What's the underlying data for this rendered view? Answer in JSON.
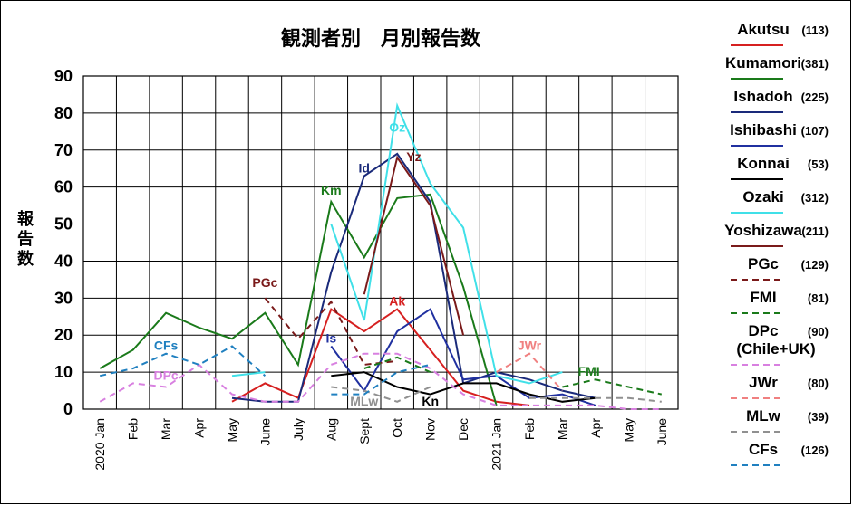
{
  "chart_data": {
    "type": "line",
    "title": "観測者別　月別報告数",
    "ylabel": "報告数",
    "xlabel": "",
    "ylim": [
      0,
      90
    ],
    "yticks": [
      0,
      10,
      20,
      30,
      40,
      50,
      60,
      70,
      80,
      90
    ],
    "grid": true,
    "legend_position": "right",
    "categories": [
      "2020 Jan",
      "Feb",
      "Mar",
      "Apr",
      "May",
      "June",
      "July",
      "Aug",
      "Sept",
      "Oct",
      "Nov",
      "Dec",
      "2021 Jan",
      "Feb",
      "Mar",
      "Apr",
      "May",
      "June"
    ],
    "series": [
      {
        "name": "Akutsu",
        "count": "(113)",
        "color": "#d62020",
        "dash": "solid",
        "values": [
          null,
          null,
          null,
          null,
          2,
          7,
          3,
          27,
          21,
          27,
          16,
          5,
          2,
          1,
          null,
          null,
          null,
          null
        ]
      },
      {
        "name": "Kumamori",
        "count": "(381)",
        "color": "#1a7a1a",
        "dash": "solid",
        "values": [
          11,
          16,
          26,
          22,
          19,
          26,
          12,
          56,
          41,
          57,
          58,
          33,
          1,
          null,
          null,
          null,
          null,
          null
        ]
      },
      {
        "name": "Ishadoh",
        "count": "(225)",
        "color": "#1a2a7a",
        "dash": "solid",
        "values": [
          null,
          null,
          null,
          null,
          3,
          2,
          2,
          37,
          63,
          69,
          56,
          7,
          10,
          8,
          5,
          3,
          null,
          null
        ]
      },
      {
        "name": "Ishibashi",
        "count": "(107)",
        "color": "#2030a0",
        "dash": "solid",
        "values": [
          null,
          null,
          null,
          null,
          null,
          null,
          null,
          17,
          5,
          21,
          27,
          8,
          9,
          3,
          4,
          1,
          null,
          null
        ]
      },
      {
        "name": "Konnai",
        "count": "(53)",
        "color": "#000000",
        "dash": "solid",
        "values": [
          null,
          null,
          null,
          null,
          null,
          null,
          null,
          9,
          10,
          6,
          4,
          7,
          7,
          4,
          2,
          3,
          null,
          null
        ]
      },
      {
        "name": "Ozaki",
        "count": "(312)",
        "color": "#40e0e8",
        "dash": "solid",
        "values": [
          null,
          null,
          null,
          null,
          9,
          10,
          null,
          50,
          24,
          82,
          61,
          49,
          9,
          7,
          10,
          null,
          null,
          null
        ]
      },
      {
        "name": "Yoshizawa",
        "count": "(211)",
        "color": "#7a1a1a",
        "dash": "solid",
        "values": [
          null,
          null,
          null,
          null,
          null,
          null,
          null,
          null,
          31,
          68,
          55,
          20,
          null,
          null,
          null,
          null,
          null,
          null
        ]
      },
      {
        "name": "PGc",
        "count": "(129)",
        "color": "#7a1a1a",
        "dash": "dashed",
        "values": [
          null,
          null,
          null,
          null,
          null,
          30,
          19,
          29,
          12,
          13,
          null,
          null,
          null,
          null,
          null,
          null,
          null,
          null
        ]
      },
      {
        "name": "FMI",
        "count": "(81)",
        "color": "#1a7a1a",
        "dash": "dashed",
        "values": [
          null,
          null,
          null,
          null,
          null,
          null,
          null,
          null,
          11,
          14,
          10,
          null,
          null,
          null,
          6,
          8,
          6,
          4
        ]
      },
      {
        "name": "DPc",
        "name2": "(Chile+UK)",
        "count": "(90)",
        "color": "#d880e0",
        "dash": "dashed",
        "values": [
          2,
          7,
          6,
          12,
          4,
          2,
          2,
          12,
          15,
          15,
          11,
          4,
          1,
          1,
          1,
          1,
          0,
          0
        ]
      },
      {
        "name": "JWr",
        "count": "(80)",
        "color": "#f08080",
        "dash": "dashed",
        "values": [
          null,
          null,
          null,
          null,
          null,
          null,
          null,
          null,
          null,
          null,
          null,
          null,
          10,
          15,
          5,
          null,
          null,
          null
        ]
      },
      {
        "name": "MLw",
        "count": "(39)",
        "color": "#909090",
        "dash": "dashed",
        "values": [
          null,
          null,
          null,
          null,
          null,
          null,
          null,
          6,
          5,
          2,
          6,
          null,
          null,
          3,
          3,
          3,
          3,
          2
        ]
      },
      {
        "name": "CFs",
        "count": "(126)",
        "color": "#2080c0",
        "dash": "dashed",
        "values": [
          9,
          11,
          15,
          12,
          17,
          9,
          null,
          4,
          4,
          10,
          12,
          null,
          null,
          null,
          null,
          null,
          null,
          null
        ]
      }
    ],
    "annotations": [
      {
        "text": "CFs",
        "x": 2,
        "y": 16,
        "color": "#2080c0"
      },
      {
        "text": "DPc",
        "x": 2,
        "y": 8,
        "color": "#d880e0"
      },
      {
        "text": "PGc",
        "x": 5,
        "y": 33,
        "color": "#7a1a1a"
      },
      {
        "text": "Km",
        "x": 7,
        "y": 58,
        "color": "#1a7a1a"
      },
      {
        "text": "Is",
        "x": 7,
        "y": 18,
        "color": "#2030a0"
      },
      {
        "text": "Id",
        "x": 8,
        "y": 64,
        "color": "#1a2a7a"
      },
      {
        "text": "Oz",
        "x": 9,
        "y": 75,
        "color": "#40e0e8"
      },
      {
        "text": "Yz",
        "x": 9.5,
        "y": 67,
        "color": "#7a1a1a"
      },
      {
        "text": "Ak",
        "x": 9,
        "y": 28,
        "color": "#d62020"
      },
      {
        "text": "MLw",
        "x": 8,
        "y": 1,
        "color": "#909090"
      },
      {
        "text": "Kn",
        "x": 10,
        "y": 1,
        "color": "#000000"
      },
      {
        "text": "JWr",
        "x": 13,
        "y": 16,
        "color": "#f08080"
      },
      {
        "text": "FMI",
        "x": 14.8,
        "y": 9,
        "color": "#1a7a1a"
      }
    ]
  }
}
